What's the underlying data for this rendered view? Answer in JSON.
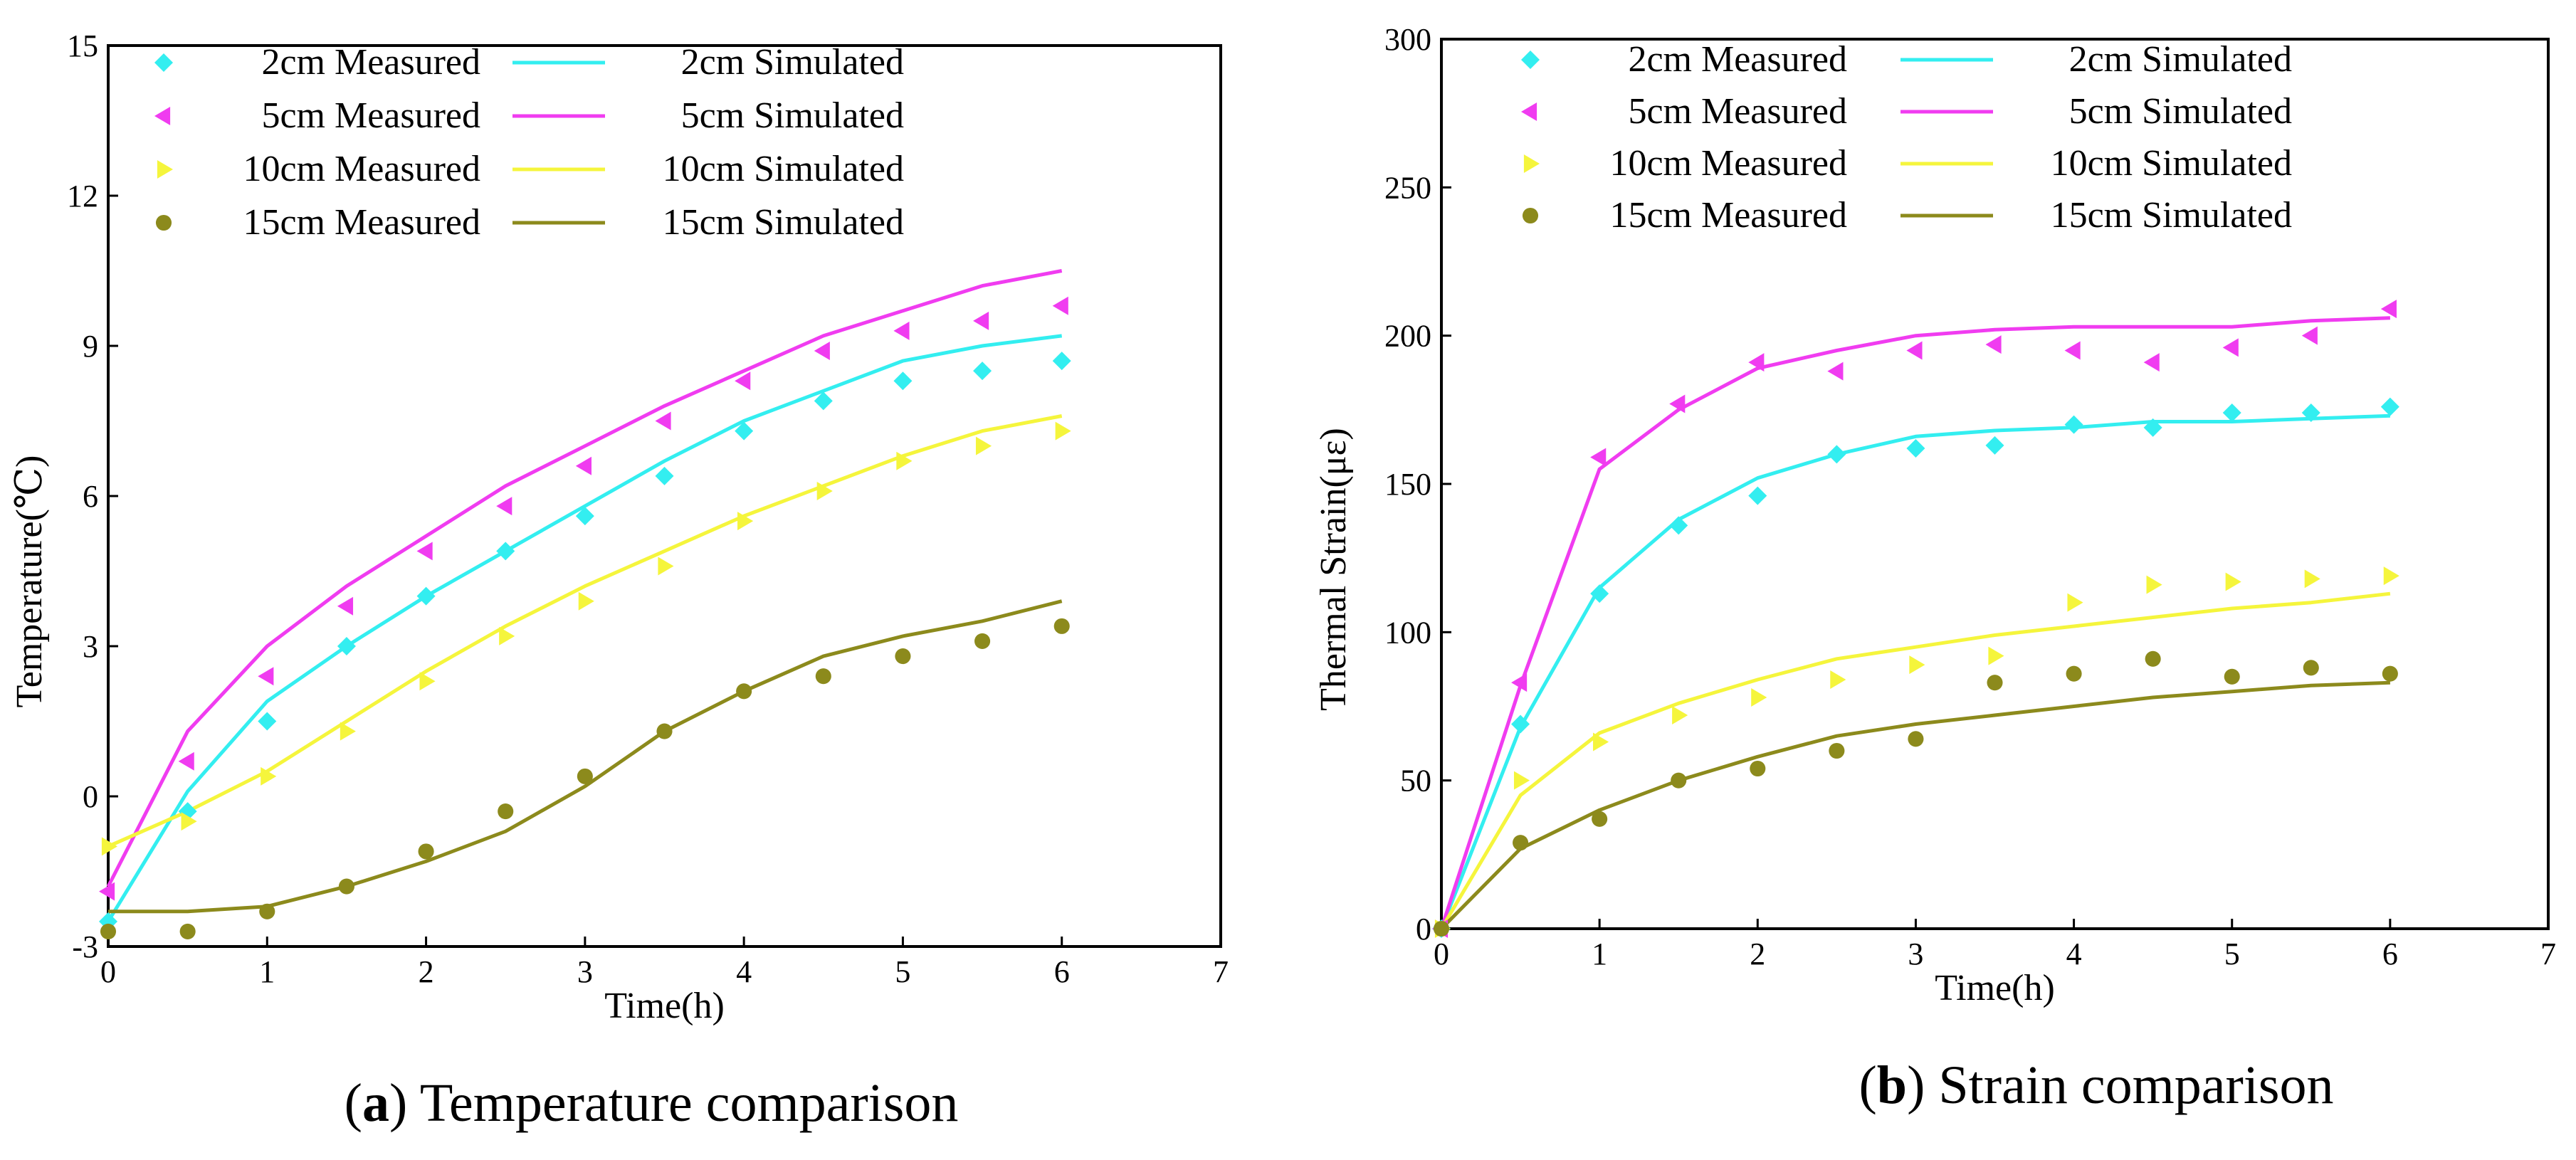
{
  "series_colors": [
    "#33eef0",
    "#f03cf0",
    "#f5f53c",
    "#8c8a1c"
  ],
  "chart_data": [
    {
      "id": "temp",
      "type": "line",
      "caption_letter": "a",
      "caption_text": " Temperature comparison",
      "xlabel": "Time(h)",
      "ylabel": "Temperature(℃)",
      "xlim": [
        0,
        7
      ],
      "ylim": [
        -3,
        15
      ],
      "xticks": [
        0,
        1,
        2,
        3,
        4,
        5,
        6,
        7
      ],
      "yticks": [
        -3,
        0,
        3,
        6,
        9,
        12,
        15
      ],
      "grid": false,
      "legend_position": "top-left",
      "measured": [
        {
          "name": "2cm Measured",
          "marker": "diamond",
          "x": [
            0,
            0.5,
            1,
            1.5,
            2,
            2.5,
            3,
            3.5,
            4,
            4.5,
            5,
            5.5,
            6
          ],
          "y": [
            -2.5,
            -0.3,
            1.5,
            3.0,
            4.0,
            4.9,
            5.6,
            6.4,
            7.3,
            7.9,
            8.3,
            8.5,
            8.7
          ]
        },
        {
          "name": "5cm Measured",
          "marker": "triangle-left",
          "x": [
            0,
            0.5,
            1,
            1.5,
            2,
            2.5,
            3,
            3.5,
            4,
            4.5,
            5,
            5.5,
            6
          ],
          "y": [
            -1.9,
            0.7,
            2.4,
            3.8,
            4.9,
            5.8,
            6.6,
            7.5,
            8.3,
            8.9,
            9.3,
            9.5,
            9.8
          ]
        },
        {
          "name": "10cm Measured",
          "marker": "triangle-right",
          "x": [
            0,
            0.5,
            1,
            1.5,
            2,
            2.5,
            3,
            3.5,
            4,
            4.5,
            5,
            5.5,
            6
          ],
          "y": [
            -1.0,
            -0.5,
            0.4,
            1.3,
            2.3,
            3.2,
            3.9,
            4.6,
            5.5,
            6.1,
            6.7,
            7.0,
            7.3
          ]
        },
        {
          "name": "15cm Measured",
          "marker": "circle",
          "x": [
            0,
            0.5,
            1,
            1.5,
            2,
            2.5,
            3,
            3.5,
            4,
            4.5,
            5,
            5.5,
            6
          ],
          "y": [
            -2.7,
            -2.7,
            -2.3,
            -1.8,
            -1.1,
            -0.3,
            0.4,
            1.3,
            2.1,
            2.4,
            2.8,
            3.1,
            3.4
          ]
        }
      ],
      "simulated": [
        {
          "name": "2cm Simulated",
          "x": [
            0,
            0.5,
            1,
            1.5,
            2,
            2.5,
            3,
            3.5,
            4,
            4.5,
            5,
            5.5,
            6
          ],
          "y": [
            -2.5,
            0.1,
            1.9,
            3.0,
            4.0,
            4.9,
            5.8,
            6.7,
            7.5,
            8.1,
            8.7,
            9.0,
            9.2
          ]
        },
        {
          "name": "5cm Simulated",
          "x": [
            0,
            0.5,
            1,
            1.5,
            2,
            2.5,
            3,
            3.5,
            4,
            4.5,
            5,
            5.5,
            6
          ],
          "y": [
            -1.8,
            1.3,
            3.0,
            4.2,
            5.2,
            6.2,
            7.0,
            7.8,
            8.5,
            9.2,
            9.7,
            10.2,
            10.5
          ]
        },
        {
          "name": "10cm Simulated",
          "x": [
            0,
            0.5,
            1,
            1.5,
            2,
            2.5,
            3,
            3.5,
            4,
            4.5,
            5,
            5.5,
            6
          ],
          "y": [
            -1.0,
            -0.3,
            0.5,
            1.5,
            2.5,
            3.4,
            4.2,
            4.9,
            5.6,
            6.2,
            6.8,
            7.3,
            7.6
          ]
        },
        {
          "name": "15cm Simulated",
          "x": [
            0,
            0.5,
            1,
            1.5,
            2,
            2.5,
            3,
            3.5,
            4,
            4.5,
            5,
            5.5,
            6
          ],
          "y": [
            -2.3,
            -2.3,
            -2.2,
            -1.8,
            -1.3,
            -0.7,
            0.2,
            1.3,
            2.1,
            2.8,
            3.2,
            3.5,
            3.9
          ]
        }
      ]
    },
    {
      "id": "strain",
      "type": "line",
      "caption_letter": "b",
      "caption_text": " Strain comparison",
      "xlabel": "Time(h)",
      "ylabel": "Thermal Strain(με)",
      "xlim": [
        0,
        7
      ],
      "ylim": [
        0,
        300
      ],
      "xticks": [
        0,
        1,
        2,
        3,
        4,
        5,
        6,
        7
      ],
      "yticks": [
        0,
        50,
        100,
        150,
        200,
        250,
        300
      ],
      "grid": false,
      "legend_position": "top-left",
      "measured": [
        {
          "name": "2cm Measured",
          "marker": "diamond",
          "x": [
            0,
            0.5,
            1,
            1.5,
            2,
            2.5,
            3,
            3.5,
            4,
            4.5,
            5,
            5.5,
            6
          ],
          "y": [
            0,
            69,
            113,
            136,
            146,
            160,
            162,
            163,
            170,
            169,
            174,
            174,
            176
          ]
        },
        {
          "name": "5cm Measured",
          "marker": "triangle-left",
          "x": [
            0,
            0.5,
            1,
            1.5,
            2,
            2.5,
            3,
            3.5,
            4,
            4.5,
            5,
            5.5,
            6
          ],
          "y": [
            0,
            83,
            159,
            177,
            191,
            188,
            195,
            197,
            195,
            191,
            196,
            200,
            209
          ]
        },
        {
          "name": "10cm Measured",
          "marker": "triangle-right",
          "x": [
            0,
            0.5,
            1,
            1.5,
            2,
            2.5,
            3,
            3.5,
            4,
            4.5,
            5,
            5.5,
            6
          ],
          "y": [
            0,
            50,
            63,
            72,
            78,
            84,
            89,
            92,
            110,
            116,
            117,
            118,
            119
          ]
        },
        {
          "name": "15cm Measured",
          "marker": "circle",
          "x": [
            0,
            0.5,
            1,
            1.5,
            2,
            2.5,
            3,
            3.5,
            4,
            4.5,
            5,
            5.5,
            6
          ],
          "y": [
            0,
            29,
            37,
            50,
            54,
            60,
            64,
            83,
            86,
            91,
            85,
            88,
            86
          ]
        }
      ],
      "simulated": [
        {
          "name": "2cm Simulated",
          "x": [
            0,
            0.5,
            1,
            1.5,
            2,
            2.5,
            3,
            3.5,
            4,
            4.5,
            5,
            5.5,
            6
          ],
          "y": [
            0,
            68,
            115,
            138,
            152,
            160,
            166,
            168,
            169,
            171,
            171,
            172,
            173
          ]
        },
        {
          "name": "5cm Simulated",
          "x": [
            0,
            0.5,
            1,
            1.5,
            2,
            2.5,
            3,
            3.5,
            4,
            4.5,
            5,
            5.5,
            6
          ],
          "y": [
            0,
            82,
            155,
            175,
            189,
            195,
            200,
            202,
            203,
            203,
            203,
            205,
            206
          ]
        },
        {
          "name": "10cm Simulated",
          "x": [
            0,
            0.5,
            1,
            1.5,
            2,
            2.5,
            3,
            3.5,
            4,
            4.5,
            5,
            5.5,
            6
          ],
          "y": [
            0,
            45,
            66,
            76,
            84,
            91,
            95,
            99,
            102,
            105,
            108,
            110,
            113
          ]
        },
        {
          "name": "15cm Simulated",
          "x": [
            0,
            0.5,
            1,
            1.5,
            2,
            2.5,
            3,
            3.5,
            4,
            4.5,
            5,
            5.5,
            6
          ],
          "y": [
            0,
            27,
            40,
            50,
            58,
            65,
            69,
            72,
            75,
            78,
            80,
            82,
            83
          ]
        }
      ]
    }
  ]
}
